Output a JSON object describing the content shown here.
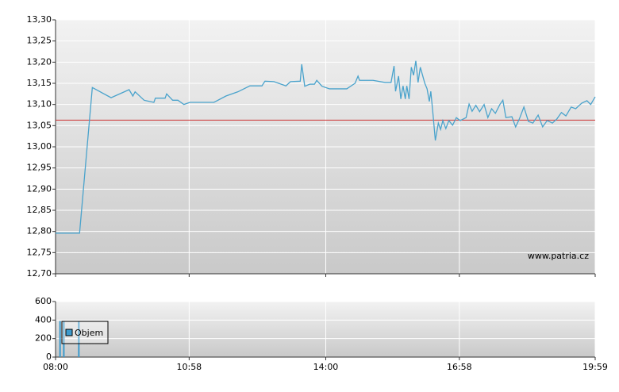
{
  "chart_data": [
    {
      "type": "line",
      "watermark": "www.patria.cz",
      "ylim": [
        12.7,
        13.3
      ],
      "yticks": [
        {
          "value": 12.7,
          "label": "12,70"
        },
        {
          "value": 12.75,
          "label": "12,75"
        },
        {
          "value": 12.8,
          "label": "12,80"
        },
        {
          "value": 12.85,
          "label": "12,85"
        },
        {
          "value": 12.9,
          "label": "12,90"
        },
        {
          "value": 12.95,
          "label": "12,95"
        },
        {
          "value": 13.0,
          "label": "13,00"
        },
        {
          "value": 13.05,
          "label": "13,05"
        },
        {
          "value": 13.1,
          "label": "13,10"
        },
        {
          "value": 13.15,
          "label": "13,15"
        },
        {
          "value": 13.2,
          "label": "13,20"
        },
        {
          "value": 13.25,
          "label": "13,25"
        },
        {
          "value": 13.3,
          "label": "13,30"
        }
      ],
      "xlim": [
        "08:00",
        "19:59"
      ],
      "grid": true,
      "reference_line": 13.063,
      "reference_color": "#cc3333",
      "x": [
        "08:00",
        "08:32",
        "08:49",
        "09:14",
        "09:38",
        "09:43",
        "09:46",
        "09:58",
        "10:11",
        "10:13",
        "10:26",
        "10:28",
        "10:36",
        "10:43",
        "10:51",
        "10:59",
        "11:31",
        "11:47",
        "12:03",
        "12:19",
        "12:35",
        "12:39",
        "12:51",
        "13:07",
        "13:13",
        "13:26",
        "13:28",
        "13:32",
        "13:39",
        "13:45",
        "13:48",
        "13:55",
        "14:05",
        "14:28",
        "14:39",
        "14:43",
        "14:45",
        "15:03",
        "15:19",
        "15:27",
        "15:31",
        "15:33",
        "15:37",
        "15:40",
        "15:43",
        "15:46",
        "15:48",
        "15:51",
        "15:54",
        "15:57",
        "16:00",
        "16:03",
        "16:06",
        "16:12",
        "16:15",
        "16:18",
        "16:20",
        "16:23",
        "16:26",
        "16:30",
        "16:33",
        "16:36",
        "16:40",
        "16:44",
        "16:49",
        "16:54",
        "16:59",
        "17:07",
        "17:11",
        "17:15",
        "17:20",
        "17:25",
        "17:31",
        "17:36",
        "17:41",
        "17:46",
        "17:52",
        "17:56",
        "18:00",
        "18:08",
        "18:13",
        "18:18",
        "18:24",
        "18:30",
        "18:36",
        "18:43",
        "18:49",
        "18:55",
        "19:02",
        "19:08",
        "19:14",
        "19:20",
        "19:27",
        "19:33",
        "19:41",
        "19:48",
        "19:53",
        "19:59"
      ],
      "series": [
        {
          "color": "#4aa3cc",
          "values": [
            12.796,
            12.796,
            13.14,
            13.116,
            13.135,
            13.12,
            13.13,
            13.11,
            13.105,
            13.115,
            13.115,
            13.125,
            13.11,
            13.11,
            13.1,
            13.105,
            13.105,
            13.12,
            13.13,
            13.144,
            13.144,
            13.155,
            13.154,
            13.144,
            13.154,
            13.155,
            13.195,
            13.143,
            13.148,
            13.148,
            13.157,
            13.143,
            13.137,
            13.137,
            13.15,
            13.167,
            13.157,
            13.157,
            13.152,
            13.152,
            13.191,
            13.131,
            13.167,
            13.113,
            13.144,
            13.113,
            13.144,
            13.113,
            13.188,
            13.169,
            13.203,
            13.152,
            13.188,
            13.15,
            13.137,
            13.107,
            13.131,
            13.075,
            13.015,
            13.056,
            13.041,
            13.062,
            13.043,
            13.062,
            13.051,
            13.069,
            13.062,
            13.069,
            13.101,
            13.084,
            13.098,
            13.083,
            13.1,
            13.069,
            13.09,
            13.079,
            13.1,
            13.11,
            13.069,
            13.071,
            13.047,
            13.066,
            13.094,
            13.06,
            13.056,
            13.075,
            13.047,
            13.062,
            13.056,
            13.066,
            13.081,
            13.073,
            13.094,
            13.09,
            13.103,
            13.109,
            13.1,
            13.118
          ]
        }
      ]
    },
    {
      "type": "bar",
      "ylim": [
        0,
        600
      ],
      "yticks": [
        0,
        200,
        400,
        600
      ],
      "xlim": [
        "08:00",
        "19:59"
      ],
      "xticks": [
        "08:00",
        "10:58",
        "14:00",
        "16:58",
        "19:59"
      ],
      "grid": true,
      "legend": "upper left",
      "x": [
        "08:06",
        "08:11",
        "08:31"
      ],
      "series": [
        {
          "name": "Objem",
          "color": "#3c9acc",
          "values": [
            390,
            390,
            390
          ]
        }
      ]
    }
  ]
}
